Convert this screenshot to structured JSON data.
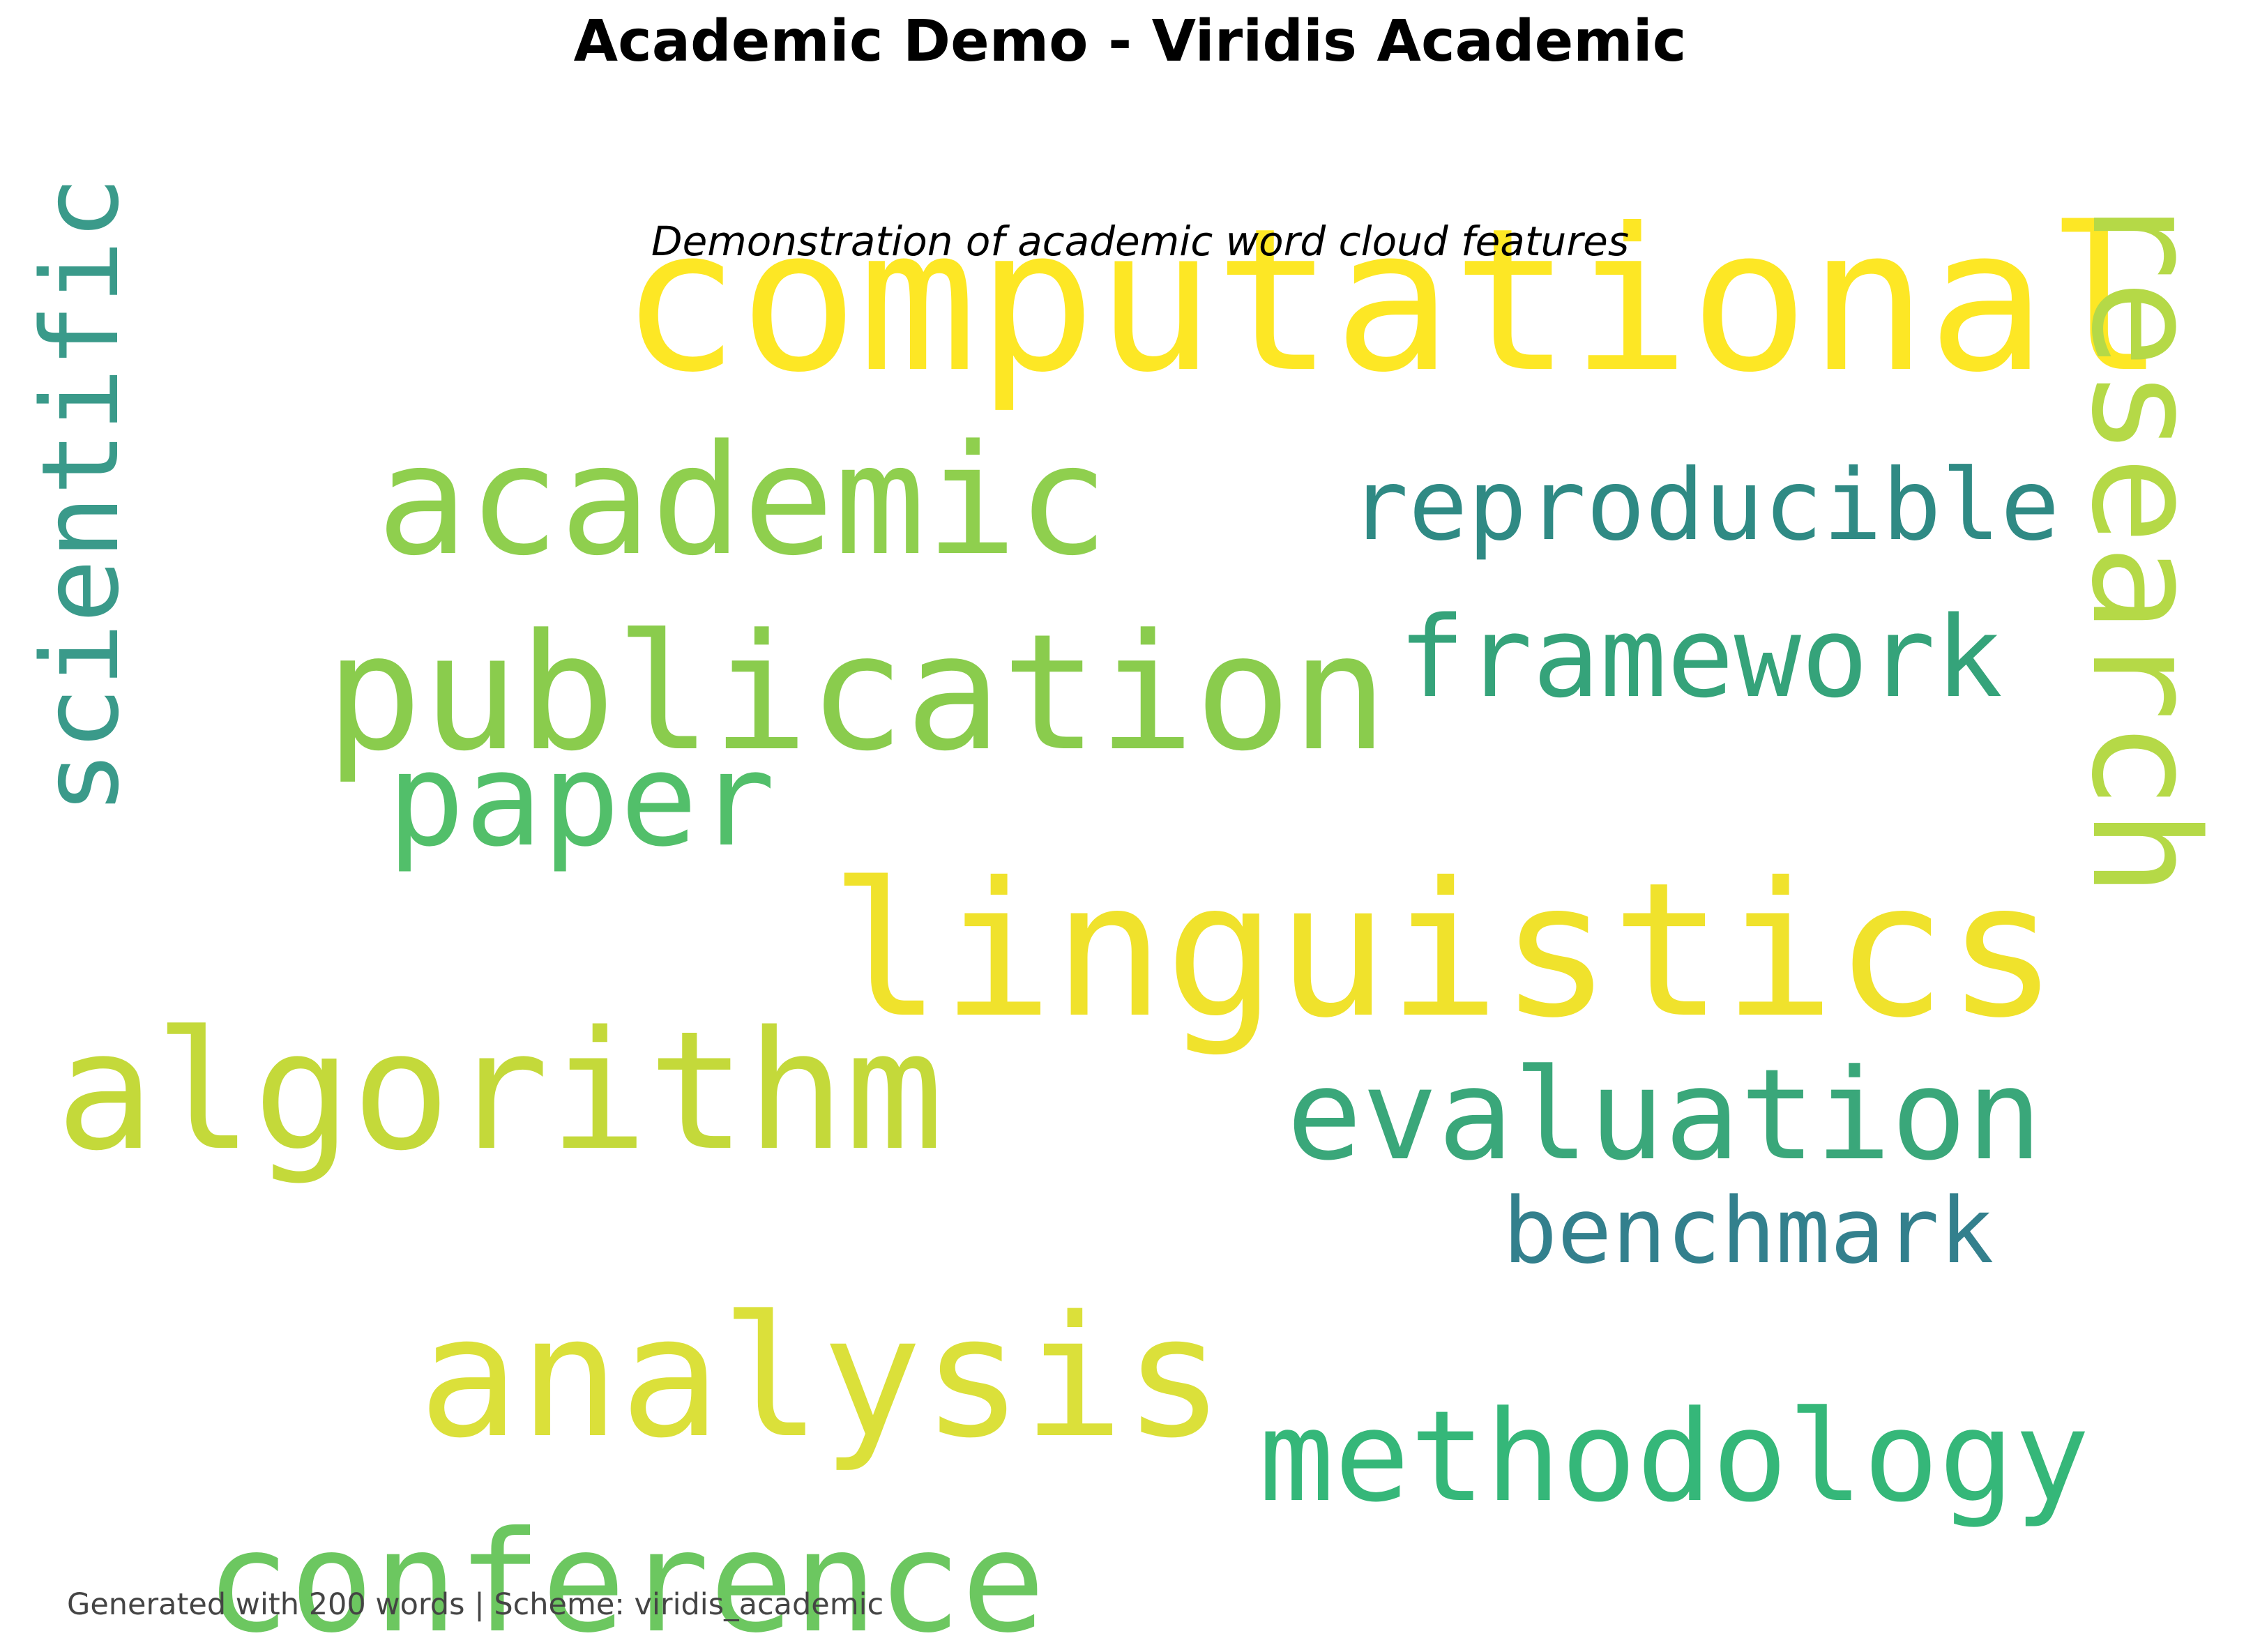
{
  "title": "Academic Demo - Viridis Academic",
  "subtitle": "Demonstration of academic word cloud features",
  "footer": "Generated with 200 words | Scheme: viridis_academic",
  "words": [
    {
      "text": "computational",
      "color": "#fde725"
    },
    {
      "text": "research",
      "color": "#b5d947"
    },
    {
      "text": "scientific",
      "color": "#3a9a8a"
    },
    {
      "text": "academic",
      "color": "#8fcf4e"
    },
    {
      "text": "reproducible",
      "color": "#2f8a84"
    },
    {
      "text": "framework",
      "color": "#35a37a"
    },
    {
      "text": "publication",
      "color": "#8acc4d"
    },
    {
      "text": "paper",
      "color": "#52bf6a"
    },
    {
      "text": "linguistics",
      "color": "#f0e22c"
    },
    {
      "text": "algorithm",
      "color": "#c4d93a"
    },
    {
      "text": "evaluation",
      "color": "#3aa77a"
    },
    {
      "text": "benchmark",
      "color": "#33808d"
    },
    {
      "text": "analysis",
      "color": "#dbe03a"
    },
    {
      "text": "methodology",
      "color": "#35b779"
    },
    {
      "text": "conference",
      "color": "#6cc760"
    }
  ]
}
